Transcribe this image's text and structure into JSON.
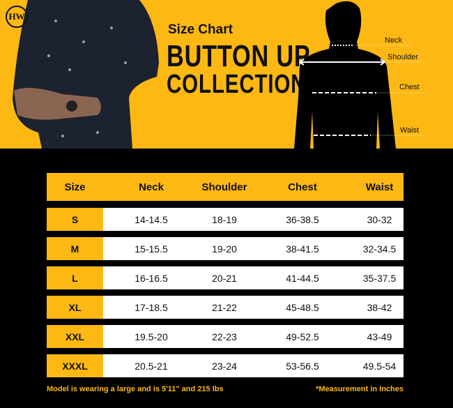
{
  "brand": {
    "logo_text": "HW",
    "accent": "#FDB813"
  },
  "header": {
    "subtitle": "Size Chart",
    "title_line1": "BUTTON UP",
    "title_line2": "COLLECTION"
  },
  "diagram": {
    "labels": [
      "Neck",
      "Shoulder",
      "Chest",
      "Waist"
    ]
  },
  "table": {
    "columns": [
      "Size",
      "Neck",
      "Shoulder",
      "Chest",
      "Waist"
    ],
    "rows": [
      [
        "S",
        "14-14.5",
        "18-19",
        "36-38.5",
        "30-32"
      ],
      [
        "M",
        "15-15.5",
        "19-20",
        "38-41.5",
        "32-34.5"
      ],
      [
        "L",
        "16-16.5",
        "20-21",
        "41-44.5",
        "35-37.5"
      ],
      [
        "XL",
        "17-18.5",
        "21-22",
        "45-48.5",
        "38-42"
      ],
      [
        "XXL",
        "19.5-20",
        "22-23",
        "49-52.5",
        "43-49"
      ],
      [
        "XXXL",
        "20.5-21",
        "23-24",
        "53-56.5",
        "49.5-54"
      ]
    ]
  },
  "footer": {
    "model_note": "Model is wearing a large and is 5'11\" and 215 lbs",
    "unit_note": "*Measurement in Inches"
  }
}
